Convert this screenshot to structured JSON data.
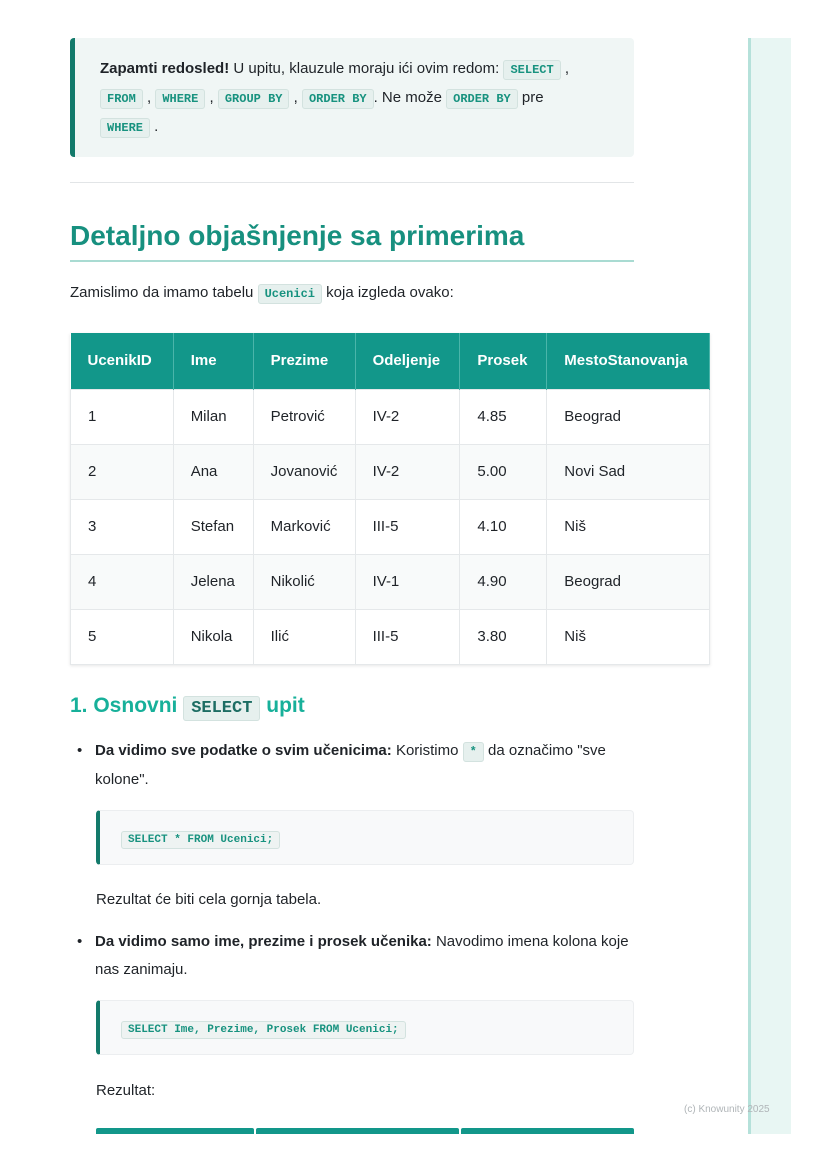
{
  "note": {
    "bold": "Zapamti redosled!",
    "text1": " U upitu, klauzule moraju ići ovim redom: ",
    "codes": [
      "SELECT",
      "FROM",
      "WHERE",
      "GROUP BY",
      "ORDER BY",
      "ORDER BY",
      "WHERE"
    ],
    "text2": ". Ne može ",
    "text3": " pre "
  },
  "heading": "Detaljno objašnjenje sa primerima",
  "intro": {
    "before": "Zamislimo da imamo tabelu ",
    "code": "Ucenici",
    "after": " koja izgleda ovako:"
  },
  "table": {
    "headers": [
      "UcenikID",
      "Ime",
      "Prezime",
      "Odeljenje",
      "Prosek",
      "MestoStanovanja"
    ],
    "rows": [
      [
        "1",
        "Milan",
        "Petrović",
        "IV-2",
        "4.85",
        "Beograd"
      ],
      [
        "2",
        "Ana",
        "Jovanović",
        "IV-2",
        "5.00",
        "Novi Sad"
      ],
      [
        "3",
        "Stefan",
        "Marković",
        "III-5",
        "4.10",
        "Niš"
      ],
      [
        "4",
        "Jelena",
        "Nikolić",
        "IV-1",
        "4.90",
        "Beograd"
      ],
      [
        "5",
        "Nikola",
        "Ilić",
        "III-5",
        "3.80",
        "Niš"
      ]
    ]
  },
  "section1": {
    "prefix": "1. Osnovni ",
    "code": "SELECT",
    "suffix": " upit",
    "b1": {
      "bold": "Da vidimo sve podatke o svim učenicima:",
      "text": " Koristimo ",
      "code": "*",
      "after": " da označimo \"sve kolone\"."
    },
    "code1": "SELECT * FROM Ucenici;",
    "p1": "Rezultat će biti cela gornja tabela.",
    "b2": {
      "bold": "Da vidimo samo ime, prezime i prosek učenika:",
      "text": " Navodimo imena kolona koje nas zanimaju."
    },
    "code2": "SELECT Ime, Prezime, Prosek FROM Ucenici;",
    "p2": "Rezultat:"
  },
  "footer": "(c) Knowunity 2025",
  "colors": {
    "accent": "#17907f",
    "table_header": "#12978a",
    "border_accent": "#137a6b"
  }
}
